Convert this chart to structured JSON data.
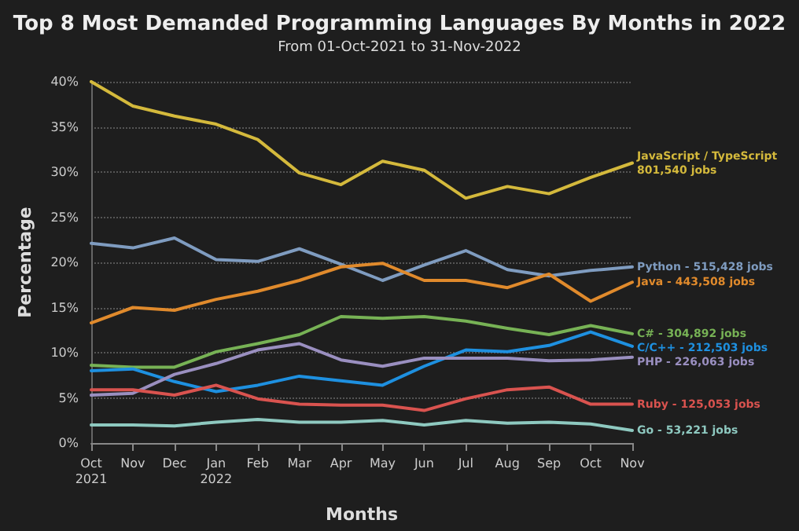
{
  "chart_data": {
    "type": "line",
    "title": "Top 8 Most Demanded Programming Languages By Months in 2022",
    "subtitle": "From 01-Oct-2021 to 31-Nov-2022",
    "xlabel": "Months",
    "ylabel": "Percentage",
    "categories": [
      "Oct\n2021",
      "Nov",
      "Dec",
      "Jan\n2022",
      "Feb",
      "Mar",
      "Apr",
      "May",
      "Jun",
      "Jul",
      "Aug",
      "Sep",
      "Oct",
      "Nov"
    ],
    "ylim": [
      0,
      40
    ],
    "yticks": [
      {
        "value": 0,
        "label": "0%"
      },
      {
        "value": 5,
        "label": "5%"
      },
      {
        "value": 10,
        "label": "10%"
      },
      {
        "value": 15,
        "label": "15%"
      },
      {
        "value": 20,
        "label": "20%"
      },
      {
        "value": 25,
        "label": "25%"
      },
      {
        "value": 30,
        "label": "30%"
      },
      {
        "value": 35,
        "label": "35%"
      },
      {
        "value": 40,
        "label": "40%"
      }
    ],
    "grid": "y",
    "legend": false,
    "marker": "none",
    "line_style": "solid",
    "series": [
      {
        "name": "JavaScript / TypeScript\n801,540 jobs",
        "color": "#d4b93c",
        "values": [
          40,
          37.3,
          36.2,
          35.3,
          33.6,
          29.9,
          28.6,
          31.2,
          30.2,
          27.1,
          28.4,
          27.6,
          29.4,
          31.0
        ]
      },
      {
        "name": "Python - 515,428 jobs",
        "color": "#7f9cc0",
        "values": [
          22.1,
          21.6,
          22.7,
          20.3,
          20.1,
          21.5,
          19.8,
          18.0,
          19.7,
          21.3,
          19.2,
          18.5,
          19.1,
          19.5
        ]
      },
      {
        "name": "Java - 443,508 jobs",
        "color": "#e08a2c",
        "values": [
          13.3,
          15.0,
          14.7,
          15.9,
          16.8,
          18.0,
          19.5,
          19.9,
          18.0,
          18.0,
          17.2,
          18.7,
          15.7,
          17.8
        ]
      },
      {
        "name": "C# - 304,892 jobs",
        "color": "#77b255",
        "values": [
          8.6,
          8.4,
          8.4,
          10.1,
          11.0,
          12.0,
          14.0,
          13.8,
          14.0,
          13.5,
          12.7,
          12.0,
          13.0,
          12.1
        ]
      },
      {
        "name": "C/C++ - 212,503 jobs",
        "color": "#1e90e0",
        "values": [
          8.0,
          8.2,
          6.8,
          5.7,
          6.4,
          7.4,
          6.9,
          6.4,
          8.5,
          10.3,
          10.1,
          10.8,
          12.3,
          10.7
        ]
      },
      {
        "name": "PHP - 226,063 jobs",
        "color": "#9a8fc0",
        "values": [
          5.3,
          5.5,
          7.6,
          8.8,
          10.3,
          11.0,
          9.2,
          8.5,
          9.4,
          9.4,
          9.4,
          9.1,
          9.2,
          9.5
        ]
      },
      {
        "name": "Ruby - 125,053 jobs",
        "color": "#d9534f",
        "values": [
          5.9,
          5.9,
          5.3,
          6.4,
          4.9,
          4.3,
          4.2,
          4.2,
          3.6,
          4.9,
          5.9,
          6.2,
          4.3,
          4.3
        ]
      },
      {
        "name": "Go - 53,221 jobs",
        "color": "#8ec9c0",
        "values": [
          2.0,
          2.0,
          1.9,
          2.3,
          2.6,
          2.3,
          2.3,
          2.5,
          2.0,
          2.5,
          2.2,
          2.3,
          2.1,
          1.4
        ]
      }
    ]
  }
}
